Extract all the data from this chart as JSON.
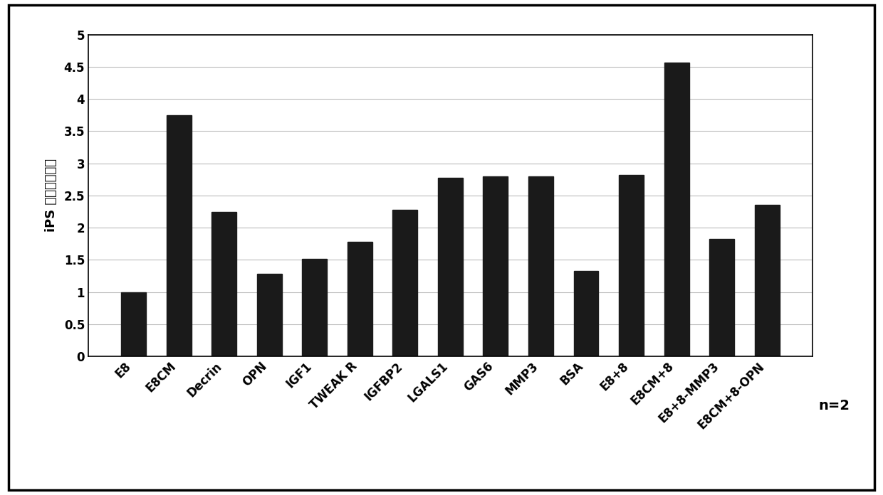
{
  "categories": [
    "E8",
    "E8CM",
    "Decrin",
    "OPN",
    "IGF1",
    "TWEAK R",
    "IGFBP2",
    "LGALS1",
    "GAS6",
    "MMP3",
    "BSA",
    "E8+8",
    "E8CM+8",
    "E8+8-MMP3",
    "E8CM+8-OPN"
  ],
  "values": [
    1.0,
    3.75,
    2.25,
    1.28,
    1.52,
    1.78,
    2.28,
    2.78,
    2.8,
    2.8,
    1.33,
    2.82,
    4.57,
    1.82,
    2.35
  ],
  "bar_color": "#1a1a1a",
  "ylabel": "iPS 細胞的増殖性",
  "ylim": [
    0,
    5
  ],
  "yticks": [
    0,
    0.5,
    1.0,
    1.5,
    2.0,
    2.5,
    3.0,
    3.5,
    4.0,
    4.5,
    5.0
  ],
  "ytick_labels": [
    "0",
    "0.5",
    "1",
    "1.5",
    "2",
    "2.5",
    "3",
    "3.5",
    "4",
    "4.5",
    "5"
  ],
  "annotation": "n=2",
  "background_color": "#ffffff",
  "bar_width": 0.55,
  "figsize": [
    12.4,
    6.96
  ],
  "dpi": 100,
  "grid_color": "#bbbbbb",
  "tick_fontsize": 12,
  "ylabel_fontsize": 13,
  "annotation_fontsize": 14
}
